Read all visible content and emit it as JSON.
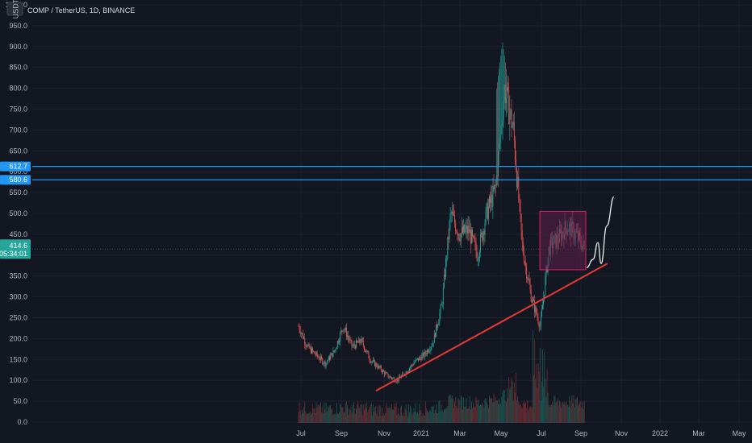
{
  "header": {
    "currency_badge": "USDT",
    "title": "COMP / TetherUS, 1D, BINANCE"
  },
  "colors": {
    "background": "#131722",
    "grid": "#1e222d",
    "up": "#26a69a",
    "down": "#ef5350",
    "volume_up": "#1f5e58",
    "volume_down": "#7a2f33",
    "level_line": "#2196f3",
    "trend_line": "#e53935",
    "range_box_border": "#d81b60",
    "range_box_fill": "#5e1f4a",
    "projection_path": "#ffffff",
    "price_tag": "#26a69a"
  },
  "price_tags": {
    "current_price": "414.6",
    "countdown": "05:34:01",
    "level_1": "612.7",
    "level_2": "580.6"
  },
  "chart_data": {
    "type": "candlestick",
    "title": "COMP / TetherUS, 1D, BINANCE",
    "ylim": [
      0,
      1000
    ],
    "y_ticks": [
      "0.0",
      "50.0",
      "100.0",
      "150.0",
      "200.0",
      "250.0",
      "300.0",
      "350.0",
      "400.0",
      "450.0",
      "500.0",
      "550.0",
      "600.0",
      "650.0",
      "700.0",
      "750.0",
      "800.0",
      "850.0",
      "900.0",
      "950.0",
      "1000.0"
    ],
    "x_ticks": [
      "Jul",
      "Sep",
      "Nov",
      "2021",
      "Mar",
      "May",
      "Jul",
      "Sep",
      "Nov",
      "2022",
      "Mar",
      "May"
    ],
    "price_anchors": [
      {
        "label": "Jul",
        "close": 230
      },
      {
        "label": "",
        "close": 180
      },
      {
        "label": "",
        "close": 160
      },
      {
        "label": "",
        "close": 140
      },
      {
        "label": "",
        "close": 170
      },
      {
        "label": "",
        "close": 230
      },
      {
        "label": "Sep",
        "close": 180
      },
      {
        "label": "",
        "close": 195
      },
      {
        "label": "",
        "close": 150
      },
      {
        "label": "",
        "close": 130
      },
      {
        "label": "",
        "close": 110
      },
      {
        "label": "Nov",
        "close": 100
      },
      {
        "label": "",
        "close": 120
      },
      {
        "label": "",
        "close": 145
      },
      {
        "label": "",
        "close": 160
      },
      {
        "label": "2021",
        "close": 190
      },
      {
        "label": "",
        "close": 280
      },
      {
        "label": "",
        "close": 500
      },
      {
        "label": "",
        "close": 450
      },
      {
        "label": "Mar",
        "close": 460
      },
      {
        "label": "",
        "close": 400
      },
      {
        "label": "",
        "close": 500
      },
      {
        "label": "",
        "close": 560
      },
      {
        "label": "May",
        "close": 800
      },
      {
        "label": "",
        "close": 700
      },
      {
        "label": "",
        "close": 420
      },
      {
        "label": "",
        "close": 300
      },
      {
        "label": "",
        "close": 230
      },
      {
        "label": "Jul",
        "close": 420
      },
      {
        "label": "",
        "close": 440
      },
      {
        "label": "",
        "close": 470
      },
      {
        "label": "",
        "close": 450
      },
      {
        "label": "Sep",
        "close": 415
      }
    ],
    "volume_note": "daily volume histogram along the bottom",
    "horizontal_levels": [
      612.7,
      580.6
    ],
    "current_price": 414.6,
    "trend_line": {
      "from": {
        "x": "Nov",
        "y": 75
      },
      "to": {
        "x": "Sep",
        "y": 380
      }
    },
    "range_box": {
      "x_from": "Jul",
      "x_to": "Sep",
      "y_low": 365,
      "y_high": 505
    },
    "projection_path": [
      {
        "label": "Sep",
        "y": 370
      },
      {
        "label": "",
        "y": 390
      },
      {
        "label": "",
        "y": 430
      },
      {
        "label": "",
        "y": 380
      },
      {
        "label": "",
        "y": 470
      },
      {
        "label": "",
        "y": 540
      }
    ]
  }
}
